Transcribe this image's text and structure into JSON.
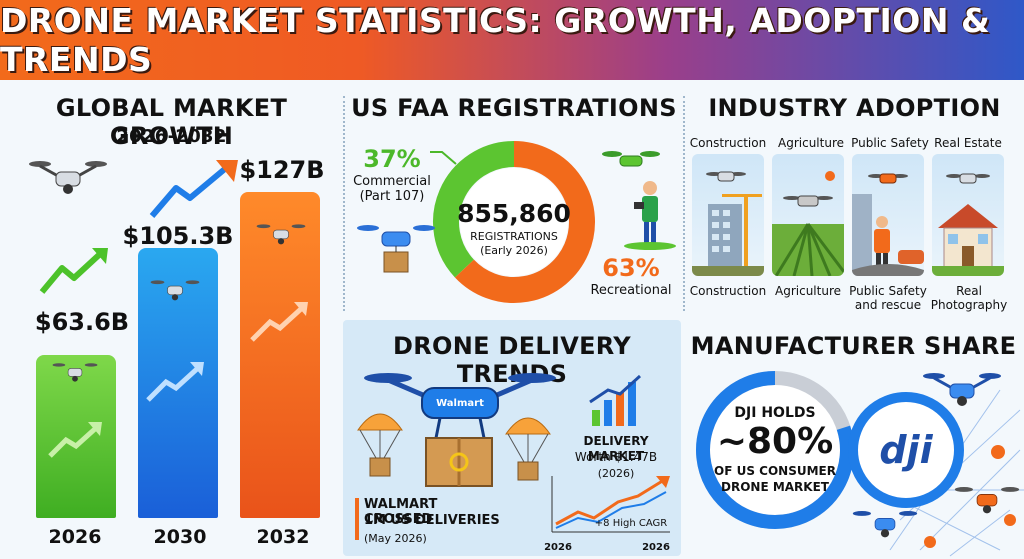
{
  "title": "DRONE MARKET STATISTICS: GROWTH, ADOPTION & TRENDS",
  "market_growth": {
    "title": "GLOBAL MARKET GROWTH",
    "subtitle": "2026-2032",
    "bars": [
      {
        "year": "2026",
        "label": "$63.6B",
        "value": 63.6
      },
      {
        "year": "2030",
        "label": "$105.3B",
        "value": 105.3
      },
      {
        "year": "2032",
        "label": "$127B",
        "value": 127
      }
    ]
  },
  "faa": {
    "title": "US FAA REGISTRATIONS",
    "total": "855,860",
    "total_label": "REGISTRATIONS",
    "total_note": "(Early 2026)",
    "commercial_pct": "37%",
    "commercial_label_1": "Commercial",
    "commercial_label_2": "(Part 107)",
    "commercial_value": 37,
    "recreational_pct": "63%",
    "recreational_label": "Recreational",
    "recreational_value": 63
  },
  "industry": {
    "title": "INDUSTRY ADOPTION",
    "items": [
      {
        "top": "Construction",
        "bottom_1": "Construction",
        "bottom_2": ""
      },
      {
        "top": "Agriculture",
        "bottom_1": "Agriculture",
        "bottom_2": ""
      },
      {
        "top": "Public Safety",
        "bottom_1": "Public Safety",
        "bottom_2": "and rescue"
      },
      {
        "top": "Real Estate",
        "bottom_1": "Real",
        "bottom_2": "Photography"
      }
    ]
  },
  "delivery": {
    "title": "DRONE DELIVERY TRENDS",
    "drone_brand": "Walmart",
    "market_label": "DELIVERY MARKET",
    "market_worth": "Worth $1.47B",
    "market_year": "(2026)",
    "walmart_line_1": "WALMART CROSSED",
    "walmart_line_2": "1M US DELIVERIES",
    "walmart_note": "(May 2026)",
    "cagr": "+8 High CAGR",
    "axis_start": "2026",
    "axis_end": "2026"
  },
  "manufacturer": {
    "title": "MANUFACTURER SHARE",
    "line_1": "DJI HOLDS",
    "pct": "~80%",
    "line_2": "OF US CONSUMER",
    "line_3": "DRONE MARKET",
    "share": 80,
    "logo": "dji"
  },
  "colors": {
    "green": "#5cc531",
    "blue": "#1f7de8",
    "orange": "#f26a1b",
    "navy": "#1f4fa8"
  },
  "icons": [
    "drone-icon",
    "trend-arrow-icon",
    "parcel-icon",
    "parachute-icon",
    "pilot-icon"
  ]
}
